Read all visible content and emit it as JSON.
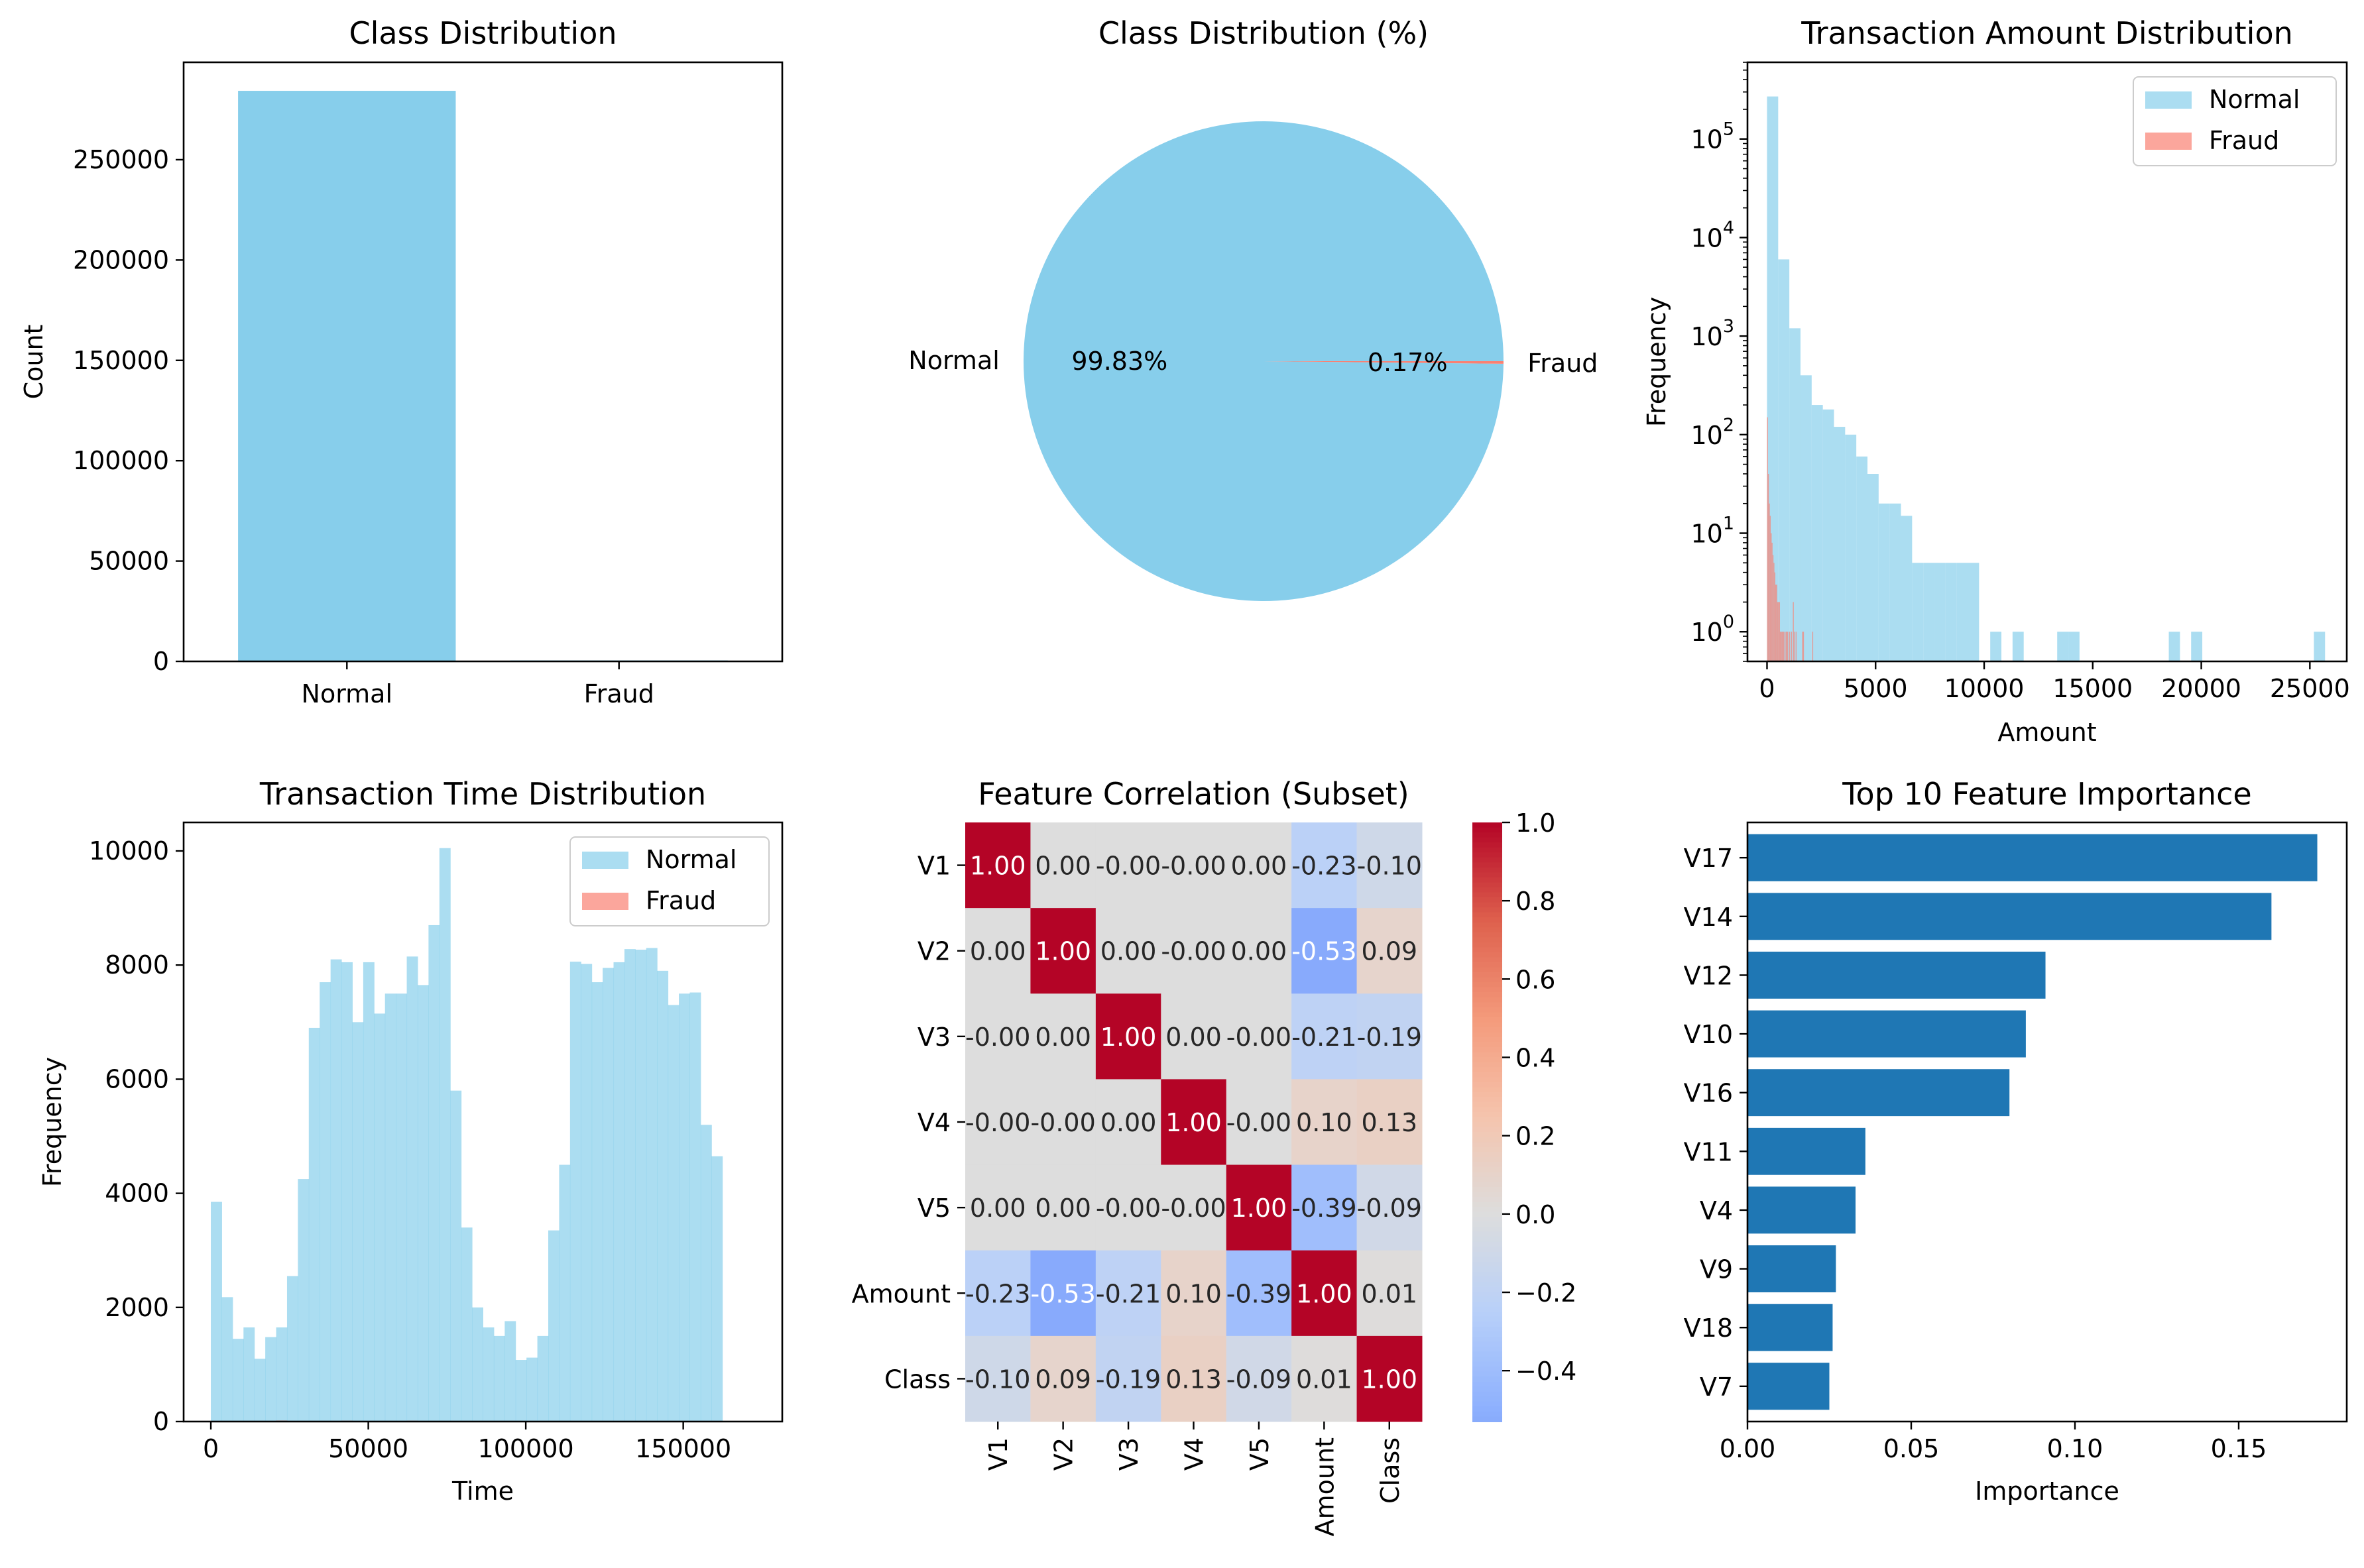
{
  "colors": {
    "normal": "#87ceeb",
    "fraud": "#fa8072",
    "bar_blue": "#1f77b4"
  },
  "chart_data": [
    {
      "type": "bar",
      "title": "Class Distribution",
      "xlabel": "",
      "ylabel": "Count",
      "categories": [
        "Normal",
        "Fraud"
      ],
      "values": [
        284315,
        492
      ],
      "ylim": [
        0,
        298530
      ],
      "yticks": [
        0,
        50000,
        100000,
        150000,
        200000,
        250000
      ],
      "yticklabels": [
        "0",
        "50000",
        "100000",
        "150000",
        "200000",
        "250000"
      ],
      "grid": false
    },
    {
      "type": "pie",
      "title": "Class Distribution (%)",
      "labels": [
        "Normal",
        "Fraud"
      ],
      "values": [
        99.83,
        0.17
      ],
      "pct_labels": [
        "99.83%",
        "0.17%"
      ]
    },
    {
      "type": "bar",
      "subtype": "histogram",
      "title": "Transaction Amount Distribution",
      "xlabel": "Amount",
      "ylabel": "Frequency",
      "yscale": "log",
      "legend_position": "upper-right",
      "xlim": [
        -900,
        26700
      ],
      "ylim": [
        0.5,
        600000
      ],
      "xticks": [
        0,
        5000,
        10000,
        15000,
        20000,
        25000
      ],
      "xticklabels": [
        "0",
        "5000",
        "10000",
        "15000",
        "20000",
        "25000"
      ],
      "yticks": [
        1,
        10,
        100,
        1000,
        10000,
        100000
      ],
      "yticklabels": [
        [
          "10",
          "0"
        ],
        [
          "10",
          "1"
        ],
        [
          "10",
          "2"
        ],
        [
          "10",
          "3"
        ],
        [
          "10",
          "4"
        ],
        [
          "10",
          "5"
        ]
      ],
      "series": [
        {
          "name": "Normal",
          "bin_start": 0,
          "bin_width": 514,
          "values": [
            270000,
            6000,
            1200,
            400,
            200,
            180,
            120,
            100,
            60,
            40,
            20,
            20,
            15,
            5,
            5,
            5,
            5,
            5,
            5,
            0,
            1,
            0,
            1,
            0,
            0,
            0,
            1,
            1,
            0,
            0,
            0,
            0,
            0,
            0,
            0,
            0,
            1,
            0,
            1,
            0,
            0,
            0,
            0,
            0,
            0,
            0,
            0,
            0,
            0,
            1
          ]
        },
        {
          "name": "Fraud",
          "bin_start": 0,
          "bin_width": 42.5,
          "values": [
            150,
            40,
            20,
            15,
            10,
            8,
            6,
            5,
            4,
            3,
            3,
            2,
            2,
            2,
            1,
            1,
            1,
            1,
            1,
            0,
            1,
            1,
            1,
            0,
            1,
            0,
            1,
            0,
            2,
            1,
            0,
            1,
            0,
            0,
            0,
            0,
            0,
            0,
            1,
            1,
            0,
            0,
            0,
            0,
            0,
            0,
            0,
            0,
            0,
            1
          ]
        }
      ]
    },
    {
      "type": "bar",
      "subtype": "histogram",
      "title": "Transaction Time Distribution",
      "xlabel": "Time",
      "ylabel": "Frequency",
      "legend_position": "upper-right",
      "xlim": [
        -8640,
        181440
      ],
      "ylim": [
        0,
        10500
      ],
      "xticks": [
        0,
        50000,
        100000,
        150000
      ],
      "xticklabels": [
        "0",
        "50000",
        "100000",
        "150000"
      ],
      "yticks": [
        0,
        2000,
        4000,
        6000,
        8000,
        10000
      ],
      "yticklabels": [
        "0",
        "2000",
        "4000",
        "6000",
        "8000",
        "10000"
      ],
      "series": [
        {
          "name": "Normal",
          "bin_start": 0,
          "bin_width": 3456,
          "values": [
            3850,
            2180,
            1450,
            1650,
            1100,
            1480,
            1650,
            2550,
            4250,
            6900,
            7700,
            8100,
            8050,
            7000,
            8050,
            7150,
            7500,
            7500,
            8150,
            7650,
            8700,
            10050,
            5800,
            3400,
            2000,
            1650,
            1500,
            1760,
            1080,
            1120,
            1500,
            3350,
            4500,
            8060,
            8020,
            7700,
            7950,
            8050,
            8280,
            8270,
            8300,
            7900,
            7300,
            7500,
            7520,
            5200,
            4650
          ]
        },
        {
          "name": "Fraud",
          "bin_start": 0,
          "bin_width": 3456,
          "values": [
            10,
            10,
            8,
            8,
            6,
            10,
            18,
            6,
            8,
            10,
            10,
            10,
            15,
            12,
            10,
            10,
            12,
            10,
            15,
            10,
            12,
            12,
            10,
            8,
            10,
            8,
            10,
            8,
            10,
            8,
            6,
            10,
            10,
            12,
            10,
            12,
            10,
            12,
            10,
            12,
            10,
            10,
            12,
            10,
            10,
            8,
            8
          ]
        }
      ]
    },
    {
      "type": "heatmap",
      "title": "Feature Correlation (Subset)",
      "labels": [
        "V1",
        "V2",
        "V3",
        "V4",
        "V5",
        "Amount",
        "Class"
      ],
      "matrix": [
        [
          1.0,
          0.0,
          -0.0,
          -0.0,
          0.0,
          -0.23,
          -0.1
        ],
        [
          0.0,
          1.0,
          0.0,
          -0.0,
          0.0,
          -0.53,
          0.09
        ],
        [
          -0.0,
          0.0,
          1.0,
          0.0,
          -0.0,
          -0.21,
          -0.19
        ],
        [
          -0.0,
          -0.0,
          0.0,
          1.0,
          -0.0,
          0.1,
          0.13
        ],
        [
          0.0,
          0.0,
          -0.0,
          -0.0,
          1.0,
          -0.39,
          -0.09
        ],
        [
          -0.23,
          -0.53,
          -0.21,
          0.1,
          -0.39,
          1.0,
          0.01
        ],
        [
          -0.1,
          0.09,
          -0.19,
          0.13,
          -0.09,
          0.01,
          1.0
        ]
      ],
      "cell_text": [
        [
          "1.00",
          "0.00",
          "-0.00",
          "-0.00",
          "0.00",
          "-0.23",
          "-0.10"
        ],
        [
          "0.00",
          "1.00",
          "0.00",
          "-0.00",
          "0.00",
          "-0.53",
          "0.09"
        ],
        [
          "-0.00",
          "0.00",
          "1.00",
          "0.00",
          "-0.00",
          "-0.21",
          "-0.19"
        ],
        [
          "-0.00",
          "-0.00",
          "0.00",
          "1.00",
          "-0.00",
          "0.10",
          "0.13"
        ],
        [
          "0.00",
          "0.00",
          "-0.00",
          "-0.00",
          "1.00",
          "-0.39",
          "-0.09"
        ],
        [
          "-0.23",
          "-0.53",
          "-0.21",
          "0.10",
          "-0.39",
          "1.00",
          "0.01"
        ],
        [
          "-0.10",
          "0.09",
          "-0.19",
          "0.13",
          "-0.09",
          "0.01",
          "1.00"
        ]
      ],
      "colormap": "coolwarm",
      "center": 0,
      "vmin": -0.53,
      "vmax": 1.0,
      "colorbar_ticks": [
        1.0,
        0.8,
        0.6,
        0.4,
        0.2,
        0.0,
        -0.2,
        -0.4
      ],
      "colorbar_ticklabels": [
        "1.0",
        "0.8",
        "0.6",
        "0.4",
        "0.2",
        "0.0",
        "−0.2",
        "−0.4"
      ]
    },
    {
      "type": "bar",
      "orientation": "horizontal",
      "title": "Top 10 Feature Importance",
      "xlabel": "Importance",
      "ylabel": "",
      "categories": [
        "V17",
        "V14",
        "V12",
        "V10",
        "V16",
        "V11",
        "V4",
        "V9",
        "V18",
        "V7"
      ],
      "values": [
        0.174,
        0.16,
        0.091,
        0.085,
        0.08,
        0.036,
        0.033,
        0.027,
        0.026,
        0.025
      ],
      "xlim": [
        0,
        0.183
      ],
      "xticks": [
        0.0,
        0.05,
        0.1,
        0.15
      ],
      "xticklabels": [
        "0.00",
        "0.05",
        "0.10",
        "0.15"
      ]
    }
  ]
}
